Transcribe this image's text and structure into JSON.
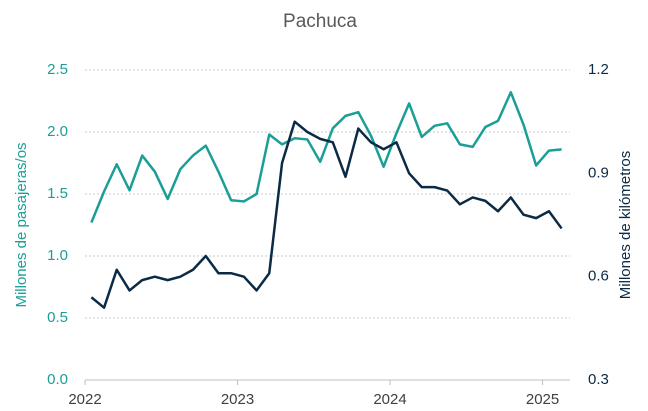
{
  "chart_data": {
    "type": "line",
    "title": "Pachuca",
    "y_label": "Millones de pasajeras/os",
    "y2_label": "Millones de kilómetros",
    "x": [
      2022.042,
      2022.125,
      2022.208,
      2022.292,
      2022.375,
      2022.458,
      2022.542,
      2022.625,
      2022.708,
      2022.792,
      2022.875,
      2022.958,
      2023.042,
      2023.125,
      2023.208,
      2023.292,
      2023.375,
      2023.458,
      2023.542,
      2023.625,
      2023.708,
      2023.792,
      2023.875,
      2023.958,
      2024.042,
      2024.125,
      2024.208,
      2024.292,
      2024.375,
      2024.458,
      2024.542,
      2024.625,
      2024.708,
      2024.792,
      2024.875,
      2024.958,
      2025.042,
      2025.125
    ],
    "series": [
      {
        "color": "#1a9e96",
        "axis": "y",
        "values": [
          1.27,
          1.52,
          1.74,
          1.53,
          1.81,
          1.68,
          1.46,
          1.7,
          1.81,
          1.89,
          1.68,
          1.45,
          1.44,
          1.5,
          1.98,
          1.9,
          1.95,
          1.94,
          1.76,
          2.03,
          2.13,
          2.16,
          1.97,
          1.72,
          1.99,
          2.23,
          1.96,
          2.05,
          2.07,
          1.9,
          1.88,
          2.04,
          2.09,
          2.32,
          2.06,
          1.73,
          1.85,
          1.86
        ]
      },
      {
        "color": "#0b2a45",
        "axis": "y2",
        "values": [
          0.54,
          0.51,
          0.62,
          0.56,
          0.59,
          0.6,
          0.59,
          0.6,
          0.62,
          0.66,
          0.61,
          0.61,
          0.6,
          0.56,
          0.61,
          0.93,
          1.05,
          1.02,
          1.0,
          0.99,
          0.89,
          1.03,
          0.99,
          0.97,
          0.99,
          0.9,
          0.86,
          0.86,
          0.85,
          0.81,
          0.83,
          0.82,
          0.79,
          0.83,
          0.78,
          0.77,
          0.79,
          0.74
        ]
      }
    ],
    "xlim": [
      2022,
      2025.18
    ],
    "xticks": [
      2022,
      2023,
      2024,
      2025
    ],
    "ylim": [
      0,
      2.5
    ],
    "yticks": [
      {
        "value": 0,
        "label": "0.0"
      },
      0.5,
      {
        "value": 1,
        "label": "1.0"
      },
      1.5,
      {
        "value": 2,
        "label": "2.0"
      },
      2.5
    ],
    "y2lim": [
      0.3,
      1.2
    ],
    "y2ticks": [
      0.3,
      0.6,
      0.9,
      1.2
    ],
    "grid": true
  }
}
